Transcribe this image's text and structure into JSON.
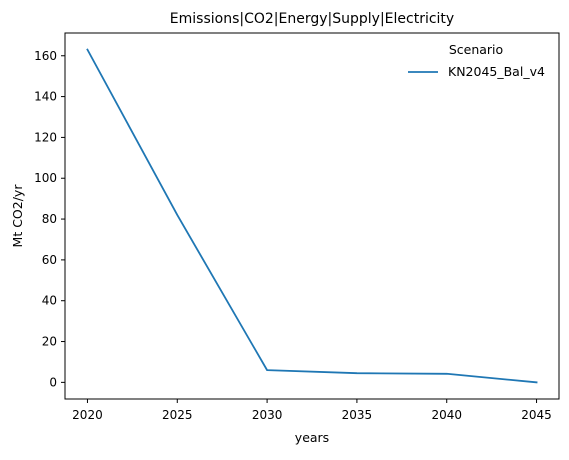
{
  "chart_data": {
    "type": "line",
    "title": "Emissions|CO2|Energy|Supply|Electricity",
    "xlabel": "years",
    "ylabel": "Mt CO2/yr",
    "x": [
      2020,
      2025,
      2030,
      2035,
      2040,
      2045
    ],
    "series": [
      {
        "name": "KN2045_Bal_v4",
        "color": "#1f77b4",
        "values": [
          163,
          82,
          6,
          4.5,
          4.2,
          0
        ]
      }
    ],
    "xlim": [
      2018.75,
      2046.25
    ],
    "ylim": [
      -8.15,
      171.15
    ],
    "x_ticks": [
      2020,
      2025,
      2030,
      2035,
      2040,
      2045
    ],
    "y_ticks": [
      0,
      20,
      40,
      60,
      80,
      100,
      120,
      140,
      160
    ],
    "grid": false,
    "legend": {
      "title": "Scenario",
      "position": "top-right",
      "frame": false
    }
  }
}
